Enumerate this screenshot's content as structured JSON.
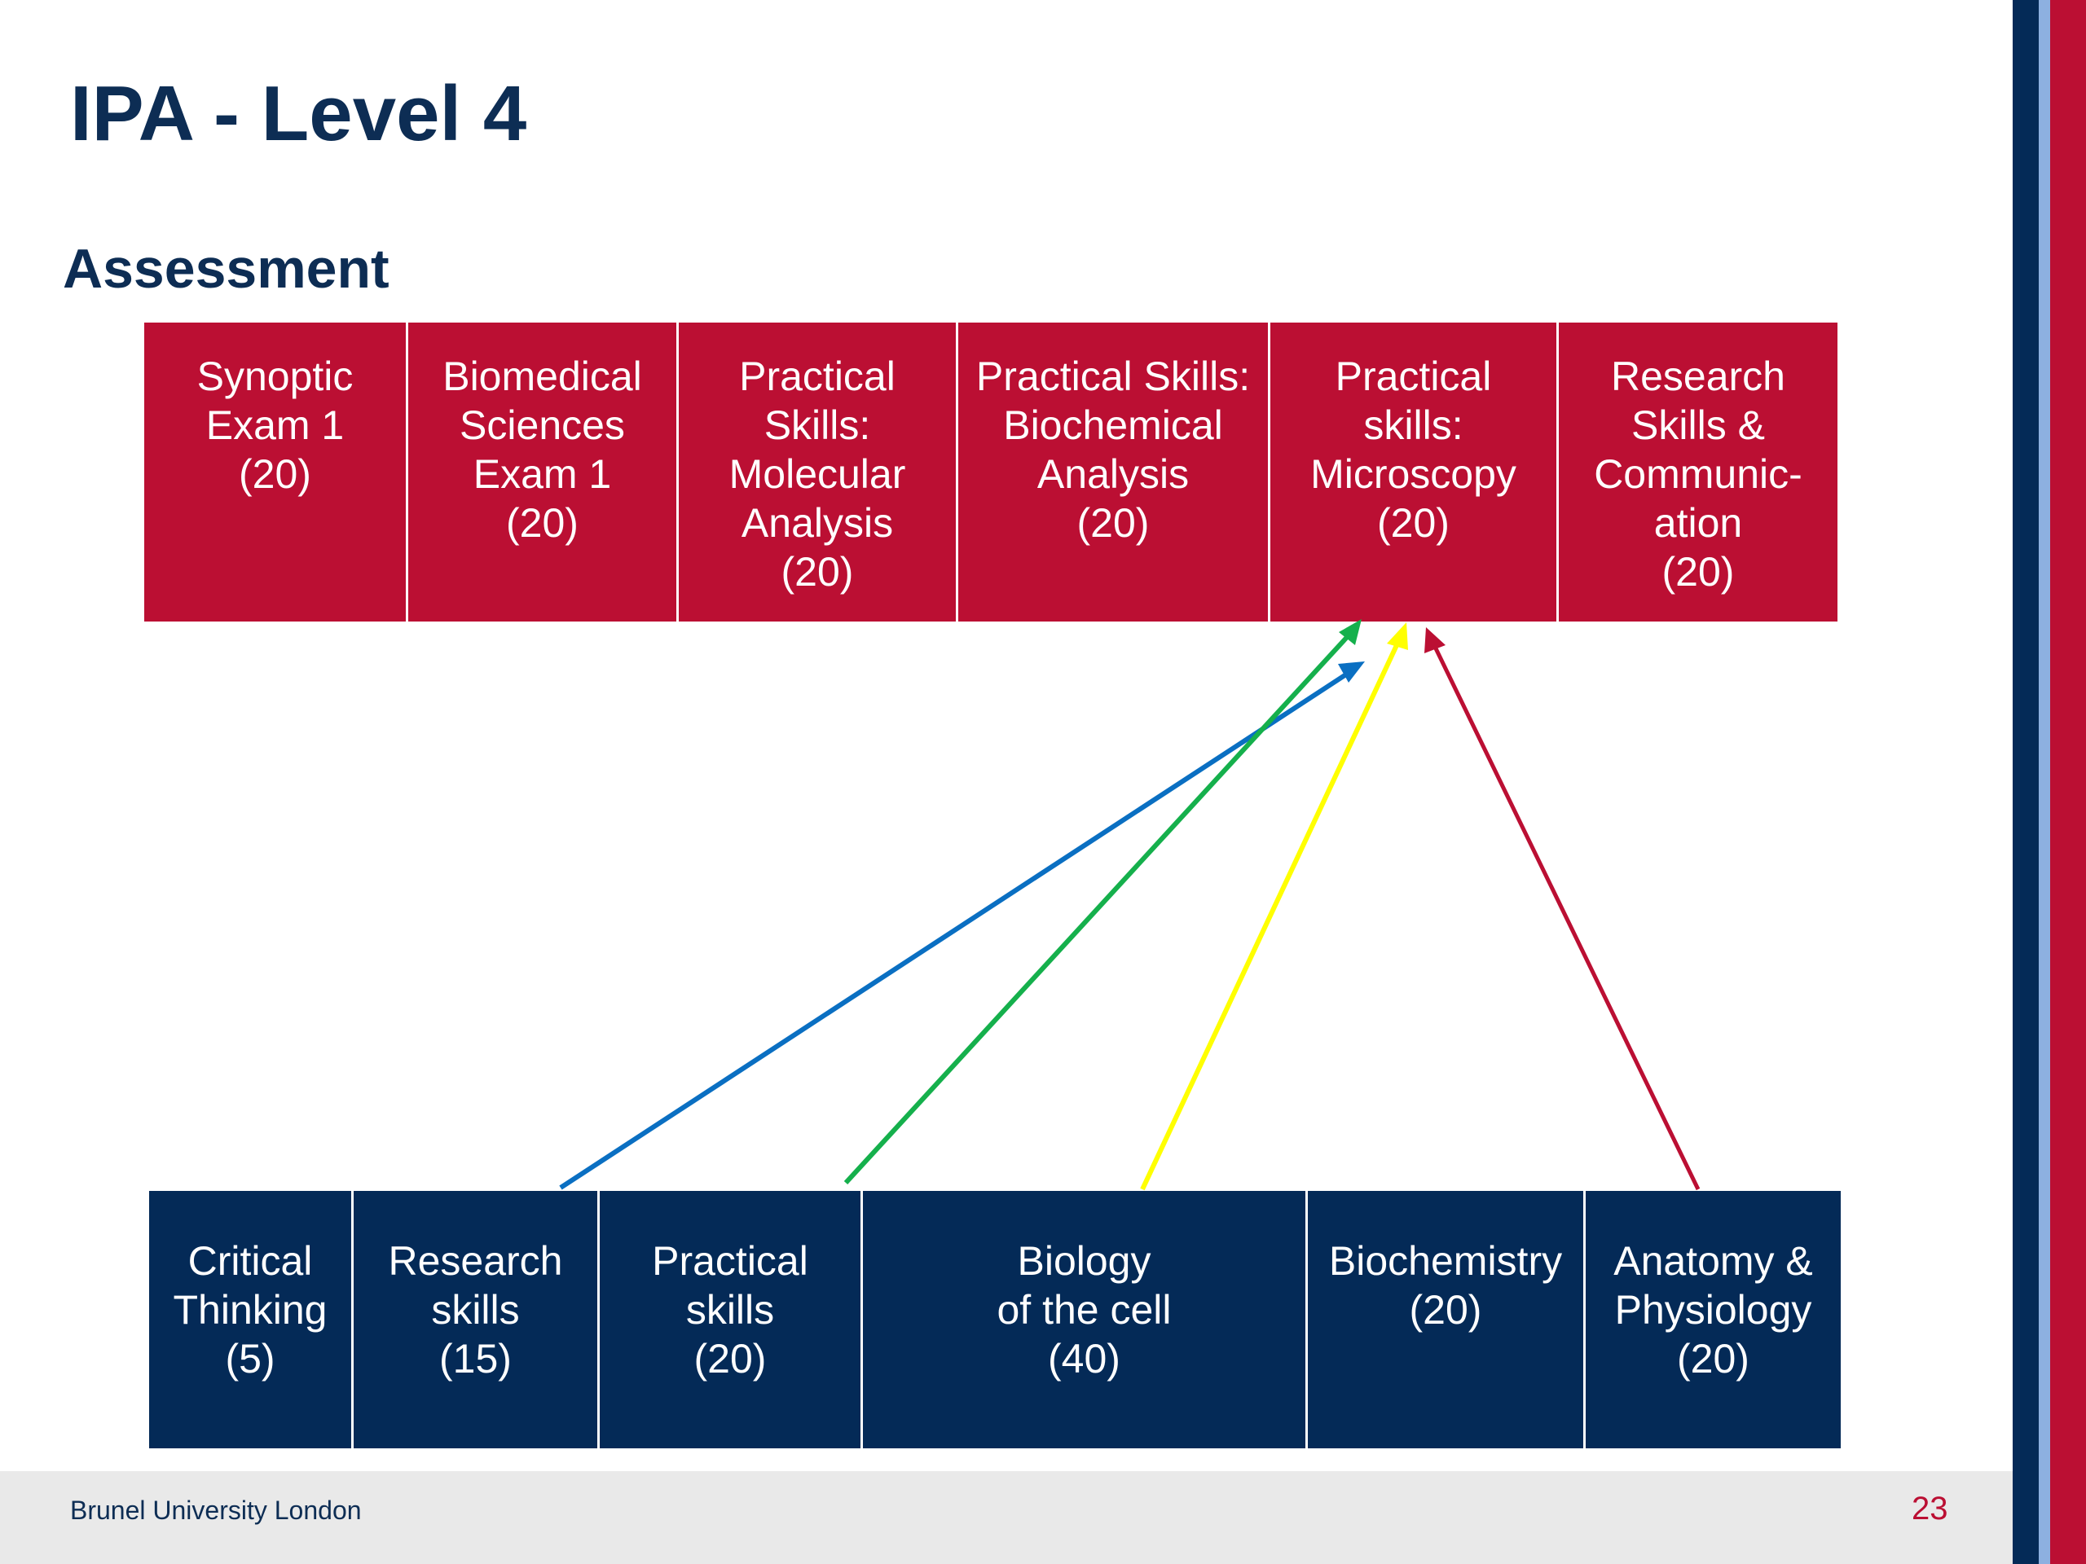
{
  "slide": {
    "title": "IPA - Level 4",
    "subtitle": "Assessment",
    "page_number": "23",
    "footer": "Brunel University London"
  },
  "colors": {
    "assessment_box": "#bb0f33",
    "module_box": "#042a57",
    "title_text": "#0d2d54",
    "stripe_navy": "#042a57",
    "stripe_lightblue": "#8db0e0",
    "stripe_red": "#bb0f33",
    "arrow_blue": "#0a6fc2",
    "arrow_green": "#15b04c",
    "arrow_yellow": "#ffff00",
    "arrow_red": "#bb0f33"
  },
  "assessments": [
    {
      "label": "Synoptic\nExam 1\n(20)"
    },
    {
      "label": "Biomedical\nSciences\nExam 1\n    (20)"
    },
    {
      "label": "Practical\nSkills:\nMolecular\nAnalysis\n(20)"
    },
    {
      "label": "Practical Skills:\nBiochemical\nAnalysis\n(20)"
    },
    {
      "label": "Practical\nskills:\nMicroscopy\n(20)"
    },
    {
      "label": "Research\nSkills &\nCommunic-\nation\n(20)"
    }
  ],
  "modules": [
    {
      "label": "Critical\nThinking\n(5)"
    },
    {
      "label": "Research\nskills\n (15)"
    },
    {
      "label": "Practical\nskills\n (20)"
    },
    {
      "label": "Biology\nof the cell\n(40)"
    },
    {
      "label": "Biochemistry\n(20)"
    },
    {
      "label": "Anatomy  &\nPhysiology\n(20)"
    }
  ],
  "links": [
    {
      "from_module": "Research skills",
      "to_assessment": "Practical skills: Microscopy",
      "color": "blue"
    },
    {
      "from_module": "Practical skills",
      "to_assessment": "Practical skills: Microscopy",
      "color": "green"
    },
    {
      "from_module": "Biology of the cell",
      "to_assessment": "Practical skills: Microscopy",
      "color": "yellow"
    },
    {
      "from_module": "Anatomy & Physiology",
      "to_assessment": "Practical skills: Microscopy",
      "color": "red"
    }
  ]
}
